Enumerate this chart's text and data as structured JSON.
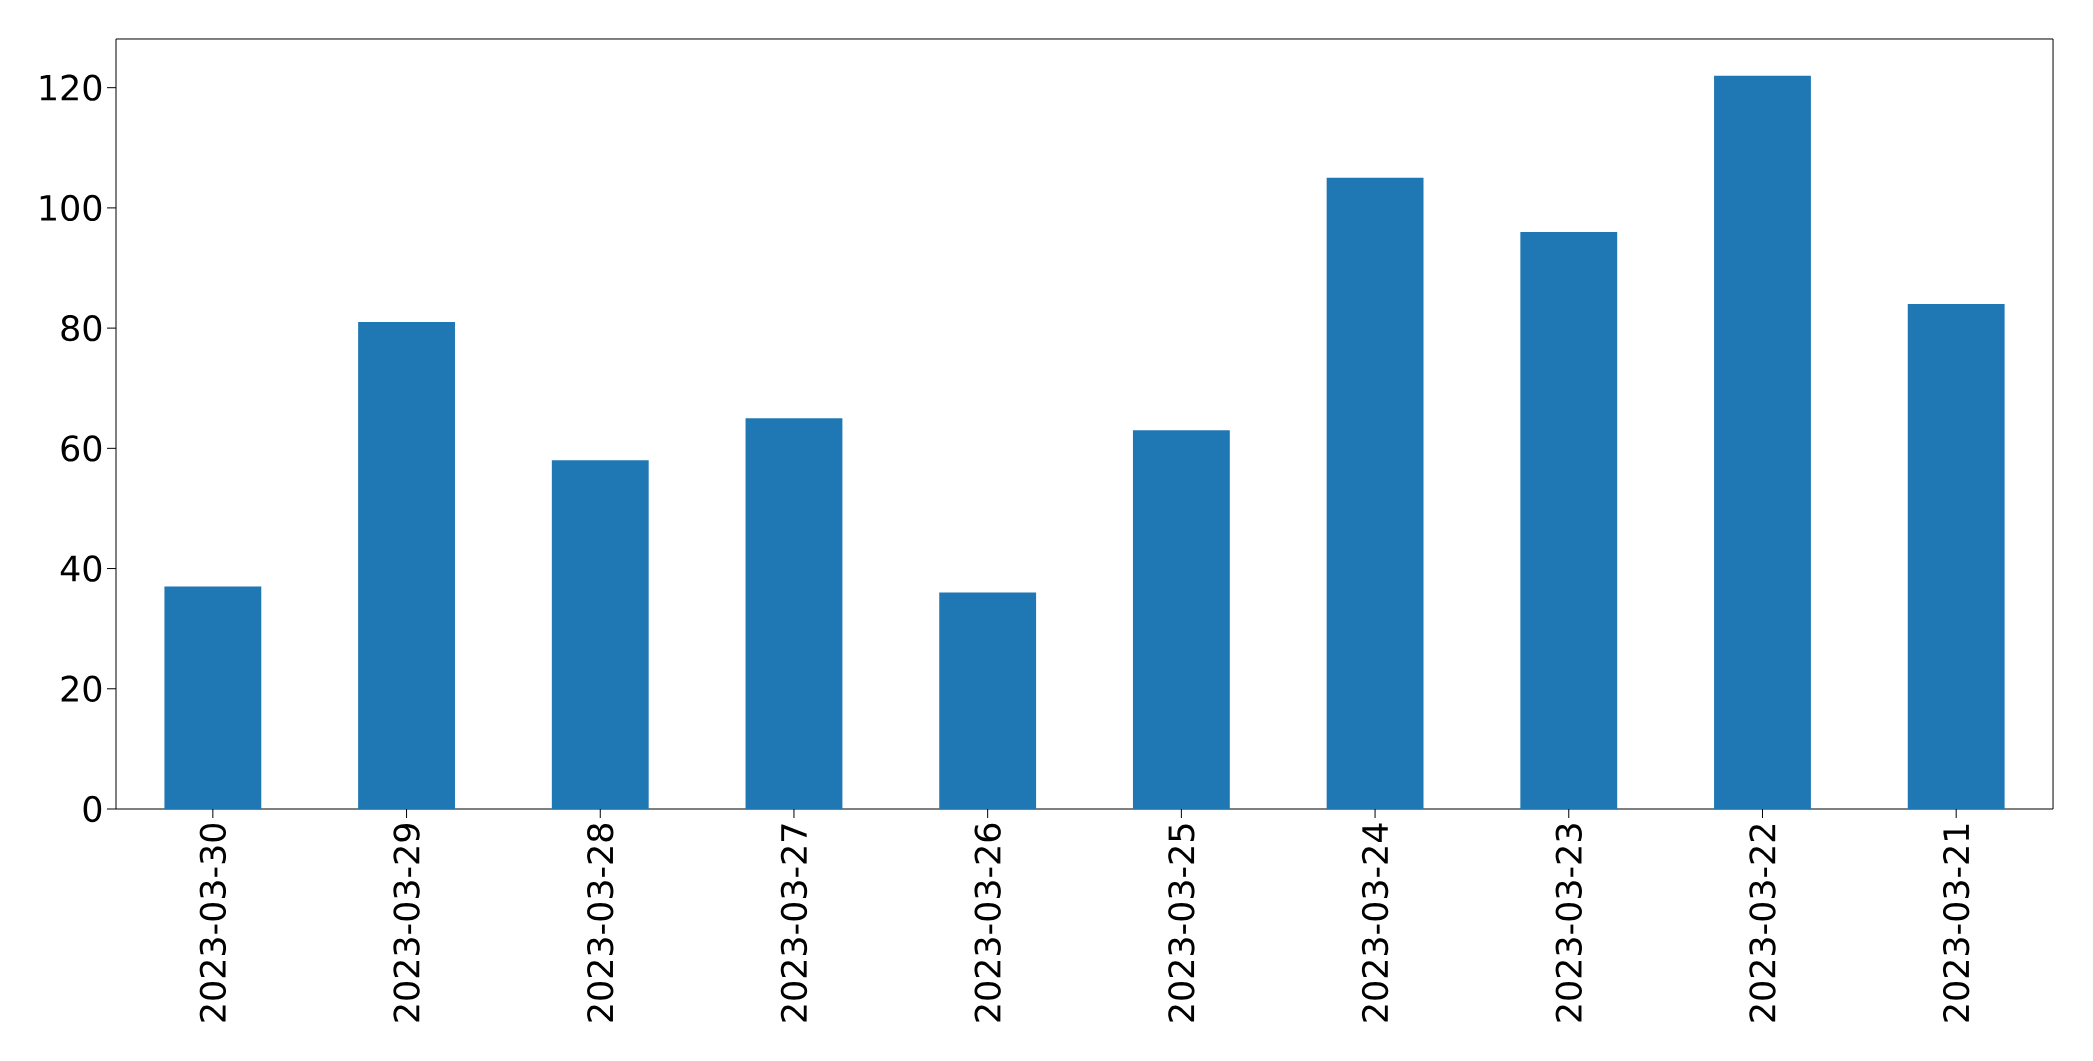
{
  "chart_data": {
    "type": "bar",
    "categories": [
      "2023-03-30",
      "2023-03-29",
      "2023-03-28",
      "2023-03-27",
      "2023-03-26",
      "2023-03-25",
      "2023-03-24",
      "2023-03-23",
      "2023-03-22",
      "2023-03-21"
    ],
    "values": [
      37,
      81,
      58,
      65,
      36,
      63,
      105,
      96,
      122,
      84
    ],
    "color": "#1f77b4",
    "ylim": [
      0,
      128.1
    ],
    "yticks": [
      0,
      20,
      40,
      60,
      80,
      100,
      120
    ]
  }
}
